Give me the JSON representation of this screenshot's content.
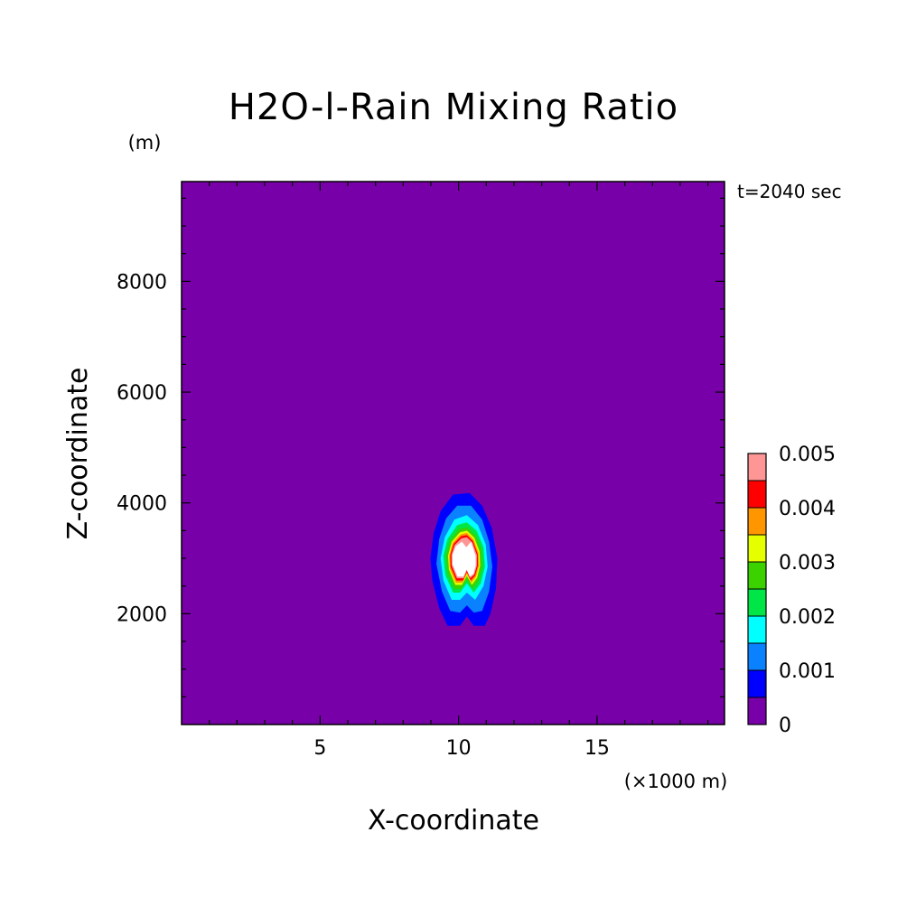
{
  "chart_data": {
    "type": "heatmap",
    "title": "H2O-l-Rain Mixing Ratio",
    "xlabel": "X-coordinate",
    "ylabel": "Z-coordinate",
    "x_unit": "(×1000 m)",
    "y_unit": "(m)",
    "time_label": "t=2040 sec",
    "xlim": [
      0,
      19.6
    ],
    "ylim": [
      0,
      9800
    ],
    "x_ticks": [
      {
        "value": 5,
        "label": "5"
      },
      {
        "value": 10,
        "label": "10"
      },
      {
        "value": 15,
        "label": "15"
      }
    ],
    "y_ticks": [
      {
        "value": 2000,
        "label": "2000"
      },
      {
        "value": 4000,
        "label": "4000"
      },
      {
        "value": 6000,
        "label": "6000"
      },
      {
        "value": 8000,
        "label": "8000"
      }
    ],
    "colorbar": {
      "levels": [
        0,
        0.0005,
        0.001,
        0.0015,
        0.002,
        0.0025,
        0.003,
        0.0035,
        0.004,
        0.0045,
        0.005
      ],
      "colors": [
        "#7800a8",
        "#0000ff",
        "#0a82ff",
        "#00ffff",
        "#00e646",
        "#3cd200",
        "#e6ff00",
        "#ff9600",
        "#ff0000",
        "#ff9696"
      ],
      "labels": [
        {
          "value": 0,
          "label": "0"
        },
        {
          "value": 0.001,
          "label": "0.001"
        },
        {
          "value": 0.002,
          "label": "0.002"
        },
        {
          "value": 0.003,
          "label": "0.003"
        },
        {
          "value": 0.004,
          "label": "0.004"
        },
        {
          "value": 0.005,
          "label": "0.005"
        }
      ]
    },
    "field": {
      "background_value": 0,
      "above_max_color": "#ffffff",
      "contour_fills": [
        {
          "level": 0.0005,
          "color": "#0000ff",
          "points": [
            [
              9.6,
              1.78
            ],
            [
              9.3,
              2.1
            ],
            [
              9.05,
              2.6
            ],
            [
              8.98,
              3.0
            ],
            [
              9.1,
              3.45
            ],
            [
              9.35,
              3.85
            ],
            [
              9.8,
              4.15
            ],
            [
              10.4,
              4.18
            ],
            [
              10.85,
              3.95
            ],
            [
              11.2,
              3.55
            ],
            [
              11.4,
              3.0
            ],
            [
              11.35,
              2.45
            ],
            [
              11.15,
              2.0
            ],
            [
              10.95,
              1.78
            ],
            [
              10.55,
              1.78
            ],
            [
              10.3,
              1.95
            ],
            [
              10.05,
              1.78
            ]
          ]
        },
        {
          "level": 0.001,
          "color": "#0a82ff",
          "points": [
            [
              9.7,
              2.05
            ],
            [
              9.4,
              2.4
            ],
            [
              9.2,
              2.9
            ],
            [
              9.3,
              3.35
            ],
            [
              9.55,
              3.72
            ],
            [
              9.95,
              3.95
            ],
            [
              10.45,
              3.95
            ],
            [
              10.85,
              3.7
            ],
            [
              11.1,
              3.3
            ],
            [
              11.22,
              2.85
            ],
            [
              11.1,
              2.4
            ],
            [
              10.85,
              2.05
            ],
            [
              10.55,
              2.02
            ],
            [
              10.3,
              2.15
            ],
            [
              10.05,
              2.02
            ]
          ]
        },
        {
          "level": 0.0015,
          "color": "#00ffff",
          "points": [
            [
              9.75,
              2.25
            ],
            [
              9.45,
              2.6
            ],
            [
              9.35,
              3.0
            ],
            [
              9.5,
              3.38
            ],
            [
              9.85,
              3.7
            ],
            [
              10.3,
              3.78
            ],
            [
              10.7,
              3.6
            ],
            [
              10.98,
              3.25
            ],
            [
              11.05,
              2.85
            ],
            [
              10.9,
              2.5
            ],
            [
              10.6,
              2.25
            ],
            [
              10.3,
              2.38
            ],
            [
              10.05,
              2.25
            ]
          ]
        },
        {
          "level": 0.002,
          "color": "#00e646",
          "points": [
            [
              9.8,
              2.38
            ],
            [
              9.52,
              2.7
            ],
            [
              9.45,
              3.05
            ],
            [
              9.6,
              3.35
            ],
            [
              9.95,
              3.6
            ],
            [
              10.3,
              3.65
            ],
            [
              10.65,
              3.5
            ],
            [
              10.9,
              3.2
            ],
            [
              10.95,
              2.85
            ],
            [
              10.8,
              2.55
            ],
            [
              10.55,
              2.38
            ],
            [
              10.3,
              2.55
            ],
            [
              10.05,
              2.38
            ]
          ]
        },
        {
          "level": 0.0025,
          "color": "#3cd200",
          "points": [
            [
              9.85,
              2.45
            ],
            [
              9.6,
              2.75
            ],
            [
              9.55,
              3.05
            ],
            [
              9.7,
              3.32
            ],
            [
              10.0,
              3.52
            ],
            [
              10.3,
              3.56
            ],
            [
              10.6,
              3.42
            ],
            [
              10.82,
              3.15
            ],
            [
              10.85,
              2.85
            ],
            [
              10.72,
              2.6
            ],
            [
              10.5,
              2.45
            ],
            [
              10.3,
              2.62
            ],
            [
              10.1,
              2.45
            ]
          ]
        },
        {
          "level": 0.003,
          "color": "#e6ff00",
          "points": [
            [
              9.88,
              2.52
            ],
            [
              9.65,
              2.8
            ],
            [
              9.62,
              3.05
            ],
            [
              9.75,
              3.3
            ],
            [
              10.05,
              3.47
            ],
            [
              10.3,
              3.5
            ],
            [
              10.57,
              3.37
            ],
            [
              10.76,
              3.12
            ],
            [
              10.78,
              2.87
            ],
            [
              10.67,
              2.65
            ],
            [
              10.48,
              2.52
            ],
            [
              10.3,
              2.68
            ],
            [
              10.12,
              2.52
            ]
          ]
        },
        {
          "level": 0.0035,
          "color": "#ff9600",
          "points": [
            [
              9.9,
              2.56
            ],
            [
              9.68,
              2.82
            ],
            [
              9.66,
              3.05
            ],
            [
              9.79,
              3.28
            ],
            [
              10.07,
              3.43
            ],
            [
              10.3,
              3.46
            ],
            [
              10.54,
              3.34
            ],
            [
              10.72,
              3.1
            ],
            [
              10.74,
              2.87
            ],
            [
              10.63,
              2.67
            ],
            [
              10.46,
              2.56
            ],
            [
              10.3,
              2.72
            ],
            [
              10.14,
              2.56
            ]
          ]
        },
        {
          "level": 0.004,
          "color": "#ff0000",
          "points": [
            [
              9.92,
              2.6
            ],
            [
              9.71,
              2.85
            ],
            [
              9.7,
              3.06
            ],
            [
              9.82,
              3.26
            ],
            [
              10.09,
              3.4
            ],
            [
              10.3,
              3.42
            ],
            [
              10.52,
              3.31
            ],
            [
              10.69,
              3.08
            ],
            [
              10.7,
              2.87
            ],
            [
              10.6,
              2.69
            ],
            [
              10.44,
              2.6
            ],
            [
              10.3,
              2.75
            ],
            [
              10.16,
              2.6
            ]
          ]
        },
        {
          "level": 0.0045,
          "color": "#ff9696",
          "points": [
            [
              9.94,
              2.64
            ],
            [
              9.75,
              2.87
            ],
            [
              9.74,
              3.06
            ],
            [
              9.86,
              3.24
            ],
            [
              10.1,
              3.36
            ],
            [
              10.3,
              3.38
            ],
            [
              10.5,
              3.28
            ],
            [
              10.66,
              3.06
            ],
            [
              10.66,
              2.87
            ],
            [
              10.57,
              2.71
            ],
            [
              10.42,
              2.64
            ],
            [
              10.3,
              2.78
            ],
            [
              10.18,
              2.64
            ]
          ]
        },
        {
          "level": 0.005,
          "color": "#ffffff",
          "points": [
            [
              9.96,
              2.67
            ],
            [
              9.78,
              2.89
            ],
            [
              9.78,
              3.07
            ],
            [
              9.9,
              3.22
            ],
            [
              10.12,
              3.3
            ],
            [
              10.28,
              3.2
            ],
            [
              10.45,
              3.3
            ],
            [
              10.62,
              3.04
            ],
            [
              10.62,
              2.87
            ],
            [
              10.54,
              2.72
            ],
            [
              10.4,
              2.67
            ],
            [
              10.29,
              2.8
            ],
            [
              10.18,
              2.67
            ]
          ]
        }
      ]
    }
  }
}
